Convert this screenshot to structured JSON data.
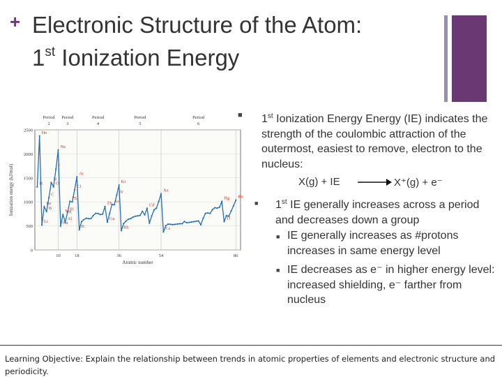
{
  "slide": {
    "plus": "+",
    "title_line1": "Electronic Structure of the Atom:",
    "title_num": "1",
    "title_sup": "st",
    "title_rest": " Ionization Energy"
  },
  "bullets": {
    "b1_marker": "■",
    "b1_pre": "1",
    "b1_sup": "st",
    "b1_text": " Ionization Energy Energy (IE) indicates the strength of the coulombic attraction of the outermost, easiest to remove, electron to the nucleus:",
    "eq_left": "X(g) + IE",
    "eq_right": "X⁺(g) + e⁻",
    "b2_marker": "■",
    "b2_pre": "1",
    "b2_sup": "st",
    "b2_text": " IE generally increases across a period and decreases down a group",
    "b3_marker": "■",
    "b3_text": "IE generally increases as #protons increases in same energy level",
    "b4_marker": "■",
    "b4_text": "IE decreases as e⁻ in higher energy level: increased shielding, e⁻ farther from nucleus"
  },
  "footer": {
    "text": "Learning Objective: Explain the relationship between trends in atomic properties of elements and electronic structure and periodicity."
  },
  "chart_data": {
    "type": "line",
    "ylabel": "Ionization energy (kJ/mol)",
    "xlabel": "Atomic number",
    "xlim": [
      0,
      88
    ],
    "ylim": [
      0,
      2500
    ],
    "yticks": [
      0,
      500,
      1000,
      1500,
      2000,
      2500
    ],
    "xticks": [
      10,
      18,
      36,
      54,
      86
    ],
    "grid": true,
    "period_labels": [
      {
        "label": "Period 2",
        "x": 6
      },
      {
        "label": "Period 3",
        "x": 14
      },
      {
        "label": "Period 4",
        "x": 27
      },
      {
        "label": "Period 5",
        "x": 45
      },
      {
        "label": "Period 6",
        "x": 70
      }
    ],
    "x": [
      1,
      2,
      3,
      4,
      5,
      6,
      7,
      8,
      9,
      10,
      11,
      12,
      13,
      14,
      15,
      16,
      17,
      18,
      19,
      20,
      21,
      22,
      23,
      24,
      25,
      26,
      27,
      28,
      29,
      30,
      31,
      32,
      33,
      34,
      35,
      36,
      37,
      38,
      39,
      40,
      41,
      42,
      43,
      44,
      45,
      46,
      47,
      48,
      49,
      50,
      51,
      52,
      53,
      54,
      55,
      56,
      57,
      58,
      59,
      60,
      61,
      62,
      63,
      64,
      65,
      66,
      67,
      68,
      69,
      70,
      71,
      72,
      73,
      74,
      75,
      76,
      77,
      78,
      79,
      80,
      81,
      82,
      83,
      84,
      85,
      86
    ],
    "values": [
      1312,
      2372,
      520,
      900,
      801,
      1086,
      1402,
      1314,
      1681,
      2081,
      496,
      738,
      578,
      787,
      1012,
      1000,
      1251,
      1521,
      419,
      590,
      633,
      659,
      651,
      653,
      717,
      762,
      760,
      737,
      745,
      906,
      579,
      762,
      947,
      941,
      1140,
      1351,
      403,
      550,
      600,
      640,
      652,
      684,
      702,
      710,
      720,
      804,
      731,
      868,
      558,
      709,
      834,
      869,
      1008,
      1170,
      376,
      503,
      538,
      534,
      527,
      533,
      540,
      545,
      547,
      593,
      566,
      573,
      581,
      589,
      597,
      603,
      524,
      659,
      761,
      770,
      760,
      840,
      880,
      870,
      890,
      1007,
      589,
      716,
      703,
      812,
      920,
      1037
    ],
    "point_labels": [
      {
        "z": 1,
        "label": "H"
      },
      {
        "z": 2,
        "label": "He"
      },
      {
        "z": 3,
        "label": "Li"
      },
      {
        "z": 4,
        "label": "Be"
      },
      {
        "z": 5,
        "label": "B"
      },
      {
        "z": 6,
        "label": "C"
      },
      {
        "z": 7,
        "label": "N"
      },
      {
        "z": 8,
        "label": "O"
      },
      {
        "z": 9,
        "label": "F"
      },
      {
        "z": 10,
        "label": "Ne"
      },
      {
        "z": 11,
        "label": "Na"
      },
      {
        "z": 12,
        "label": "Mg"
      },
      {
        "z": 13,
        "label": "Al"
      },
      {
        "z": 14,
        "label": "Si"
      },
      {
        "z": 15,
        "label": "P"
      },
      {
        "z": 16,
        "label": "S"
      },
      {
        "z": 17,
        "label": "Cl"
      },
      {
        "z": 18,
        "label": "Ar"
      },
      {
        "z": 19,
        "label": "K"
      },
      {
        "z": 30,
        "label": "Zn"
      },
      {
        "z": 31,
        "label": "Ga"
      },
      {
        "z": 33,
        "label": "As"
      },
      {
        "z": 35,
        "label": "Br"
      },
      {
        "z": 36,
        "label": "Kr"
      },
      {
        "z": 37,
        "label": "Rb"
      },
      {
        "z": 48,
        "label": "Cd"
      },
      {
        "z": 53,
        "label": "I"
      },
      {
        "z": 54,
        "label": "Xe"
      },
      {
        "z": 55,
        "label": "Cs"
      },
      {
        "z": 80,
        "label": "Hg"
      },
      {
        "z": 81,
        "label": "Tl"
      },
      {
        "z": 86,
        "label": "Rn"
      }
    ],
    "colors": {
      "line": "#1f6fb8",
      "labels": "#c0392b",
      "grid": "#dddddd",
      "axis": "#555555"
    }
  }
}
